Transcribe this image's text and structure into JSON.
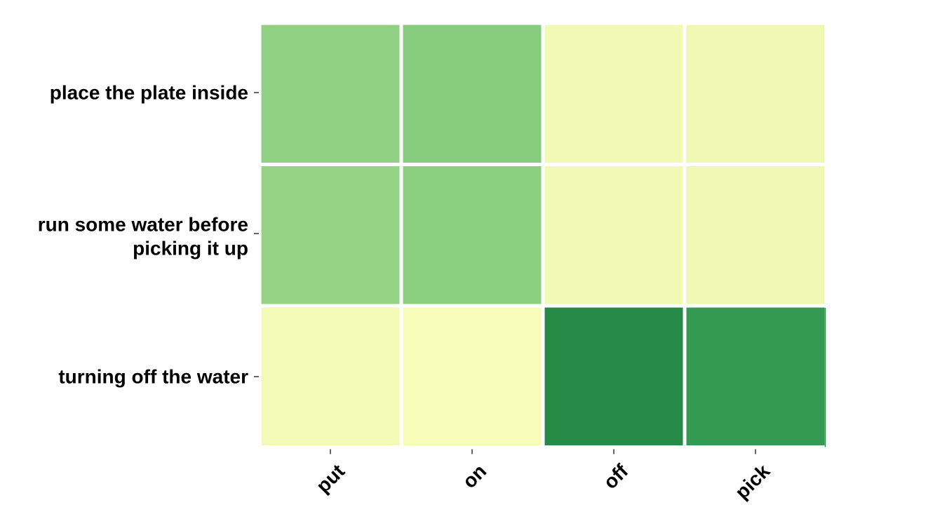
{
  "chart_data": {
    "type": "heatmap",
    "rows": [
      "place the plate inside",
      [
        "run some water before",
        "picking it up"
      ],
      "turning off the water"
    ],
    "columns": [
      "put",
      "on",
      "off",
      "pick"
    ],
    "values": [
      [
        0.55,
        0.58,
        0.08,
        0.1
      ],
      [
        0.52,
        0.56,
        0.08,
        0.1
      ],
      [
        0.07,
        0.04,
        1.0,
        0.92
      ]
    ],
    "colormap": "YlGn",
    "colorbar": false,
    "grid_color": "#ffffff",
    "title": "",
    "xlabel": "",
    "ylabel": ""
  }
}
